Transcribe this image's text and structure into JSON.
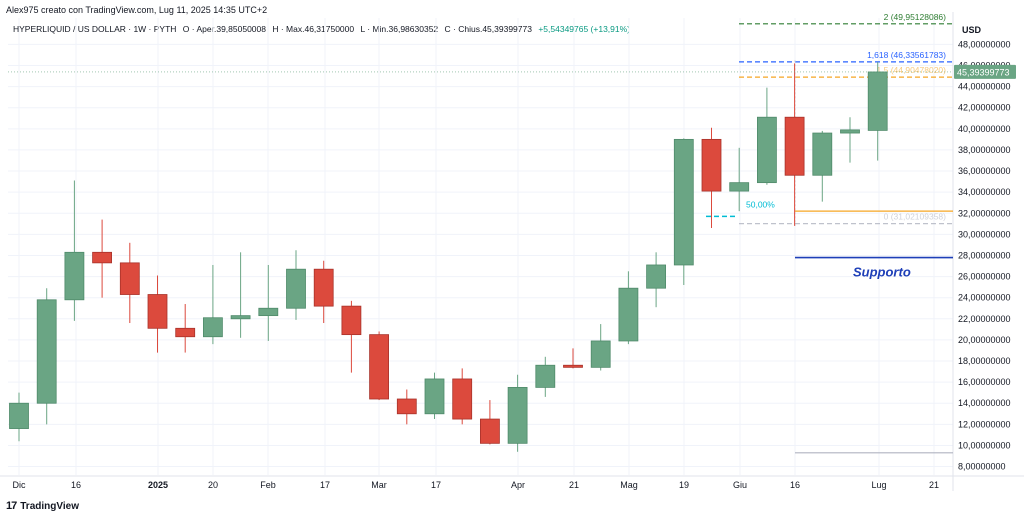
{
  "header": {
    "credit": "Alex975 creato con TradingView.com, Lug 11, 2025 14:35 UTC+2"
  },
  "legend": {
    "symbol": "HYPERLIQUID / US DOLLAR · 1W · PYTH",
    "open": "O · Aper.39,85050008",
    "high": "H · Max.46,31750000",
    "low": "L · Min.36,98630352",
    "close": "C · Chius.45,39399773",
    "change": "+5,54349765 (+13,91%)"
  },
  "currency_label": "USD",
  "footer": {
    "brand": "TradingView",
    "logo_glyph": "17"
  },
  "chart_data": {
    "type": "candlestick",
    "x_tick_labels": [
      "Dic",
      "16",
      "2025",
      "20",
      "Feb",
      "17",
      "Mar",
      "17",
      "Apr",
      "21",
      "Mag",
      "19",
      "Giu",
      "16",
      "Lug",
      "21"
    ],
    "y_tick_labels": [
      "8,00000000",
      "10,00000000",
      "12,00000000",
      "14,00000000",
      "16,00000000",
      "18,00000000",
      "20,00000000",
      "22,00000000",
      "24,00000000",
      "26,00000000",
      "28,00000000",
      "30,00000000",
      "32,00000000",
      "34,00000000",
      "36,00000000",
      "38,00000000",
      "40,00000000",
      "42,00000000",
      "44,00000000",
      "46,00000000",
      "48,00000000"
    ],
    "ylim": [
      7.2,
      50.5
    ],
    "candles": [
      {
        "o": 11.6,
        "h": 15.0,
        "l": 10.4,
        "c": 14.0
      },
      {
        "o": 14.0,
        "h": 24.9,
        "l": 12.0,
        "c": 23.8
      },
      {
        "o": 23.8,
        "h": 35.1,
        "l": 21.8,
        "c": 28.3
      },
      {
        "o": 28.3,
        "h": 31.4,
        "l": 24.0,
        "c": 27.3
      },
      {
        "o": 27.3,
        "h": 29.2,
        "l": 21.6,
        "c": 24.3
      },
      {
        "o": 24.3,
        "h": 26.1,
        "l": 18.8,
        "c": 21.1
      },
      {
        "o": 21.1,
        "h": 23.4,
        "l": 18.8,
        "c": 20.3
      },
      {
        "o": 20.3,
        "h": 27.1,
        "l": 19.6,
        "c": 22.1
      },
      {
        "o": 22.0,
        "h": 28.3,
        "l": 20.2,
        "c": 22.3
      },
      {
        "o": 22.3,
        "h": 27.1,
        "l": 19.9,
        "c": 23.0
      },
      {
        "o": 23.0,
        "h": 28.5,
        "l": 21.9,
        "c": 26.7
      },
      {
        "o": 26.7,
        "h": 27.5,
        "l": 21.6,
        "c": 23.2
      },
      {
        "o": 23.2,
        "h": 23.7,
        "l": 16.9,
        "c": 20.5
      },
      {
        "o": 20.5,
        "h": 20.8,
        "l": 14.3,
        "c": 14.4
      },
      {
        "o": 14.4,
        "h": 15.3,
        "l": 12.0,
        "c": 13.0
      },
      {
        "o": 13.0,
        "h": 16.9,
        "l": 12.5,
        "c": 16.3
      },
      {
        "o": 16.3,
        "h": 17.3,
        "l": 12.0,
        "c": 12.5
      },
      {
        "o": 12.5,
        "h": 14.3,
        "l": 10.1,
        "c": 10.2
      },
      {
        "o": 10.2,
        "h": 16.7,
        "l": 9.4,
        "c": 15.5
      },
      {
        "o": 15.5,
        "h": 18.4,
        "l": 14.6,
        "c": 17.6
      },
      {
        "o": 17.6,
        "h": 19.2,
        "l": 17.3,
        "c": 17.4
      },
      {
        "o": 17.4,
        "h": 21.5,
        "l": 17.1,
        "c": 19.9
      },
      {
        "o": 19.9,
        "h": 26.5,
        "l": 19.6,
        "c": 24.9
      },
      {
        "o": 24.9,
        "h": 28.3,
        "l": 23.1,
        "c": 27.1
      },
      {
        "o": 27.1,
        "h": 39.1,
        "l": 25.2,
        "c": 39.0
      },
      {
        "o": 39.0,
        "h": 40.1,
        "l": 30.6,
        "c": 34.1
      },
      {
        "o": 34.1,
        "h": 38.2,
        "l": 32.2,
        "c": 34.9
      },
      {
        "o": 34.9,
        "h": 43.9,
        "l": 34.7,
        "c": 41.1
      },
      {
        "o": 41.1,
        "h": 46.2,
        "l": 30.8,
        "c": 35.6
      },
      {
        "o": 35.6,
        "h": 39.8,
        "l": 33.1,
        "c": 39.6
      },
      {
        "o": 39.6,
        "h": 41.1,
        "l": 36.8,
        "c": 39.9
      },
      {
        "o": 39.85,
        "h": 46.32,
        "l": 36.99,
        "c": 45.39
      }
    ],
    "fib_levels": [
      {
        "label": "2 (49,95128086)",
        "value": 49.95,
        "color": "#2e7d32",
        "style": "dashed"
      },
      {
        "label": "1,618 (46,33561783)",
        "value": 46.34,
        "color": "#2962ff",
        "style": "dashed"
      },
      {
        "label": "1,5 (44,90478020)",
        "value": 44.9,
        "color": "#f5a623",
        "style": "dashed"
      },
      {
        "label": "50,00%",
        "value": 31.7,
        "color": "#00bcd4",
        "style": "dashed"
      },
      {
        "label": "0 (31,02109358)",
        "value": 31.02,
        "color": "#b0b4c0",
        "style": "dashed"
      }
    ],
    "support": {
      "label": "Supporto",
      "value": 27.8,
      "color": "#1e3fb8"
    },
    "orange_line": {
      "value": 32.2,
      "color": "#f5a623"
    },
    "grey_line": {
      "value": 9.3,
      "color": "#b0b4c0"
    },
    "last_price_label": "45,39399773",
    "up_color": "#6aa584",
    "down_color": "#dc4a3d",
    "grid": true
  }
}
